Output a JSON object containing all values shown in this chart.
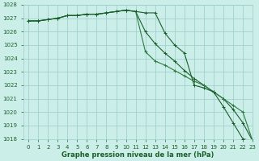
{
  "x": [
    0,
    1,
    2,
    3,
    4,
    5,
    6,
    7,
    8,
    9,
    10,
    11,
    12,
    13,
    14,
    15,
    16,
    17,
    18,
    19,
    20,
    21,
    22,
    23
  ],
  "line1": [
    1026.8,
    1026.8,
    1026.9,
    1027.0,
    1027.2,
    1027.2,
    1027.3,
    1027.3,
    1027.4,
    1027.5,
    1027.6,
    1027.5,
    1026.0,
    1025.1,
    1024.4,
    1023.8,
    1023.1,
    1022.5,
    1022.0,
    1021.5,
    1021.0,
    1020.2,
    1019.2,
    1017.85
  ],
  "line2": [
    1026.8,
    1026.8,
    1026.9,
    1027.0,
    1027.2,
    1027.2,
    1027.3,
    1027.3,
    1027.4,
    1027.5,
    1027.6,
    1027.5,
    1024.5,
    1023.8,
    1023.5,
    1023.1,
    1022.7,
    1022.3,
    1022.0,
    1021.5,
    1021.0,
    1020.5,
    1020.0,
    1017.85
  ],
  "line3": [
    1026.8,
    1026.8,
    1026.9,
    1027.0,
    1027.2,
    1027.2,
    1027.3,
    1027.3,
    1027.4,
    1027.5,
    1027.6,
    1027.5,
    1027.4,
    1027.4,
    1025.9,
    1025.0,
    1024.4,
    1022.0,
    1021.8,
    1021.5,
    1020.4,
    1019.2,
    1018.0,
    1017.85
  ],
  "bg_color": "#cceee8",
  "grid_color": "#99cccc",
  "line_color_dark": "#1a5e2a",
  "line_color_mid": "#2d7a40",
  "xlabel": "Graphe pression niveau de la mer (hPa)",
  "ylim": [
    1018,
    1028
  ],
  "xlim": [
    -0.5,
    23
  ],
  "yticks": [
    1018,
    1019,
    1020,
    1021,
    1022,
    1023,
    1024,
    1025,
    1026,
    1027,
    1028
  ],
  "xticks": [
    0,
    1,
    2,
    3,
    4,
    5,
    6,
    7,
    8,
    9,
    10,
    11,
    12,
    13,
    14,
    15,
    16,
    17,
    18,
    19,
    20,
    21,
    22,
    23
  ],
  "tick_color": "#1a5e2a",
  "label_fontsize": 6.0,
  "tick_fontsize": 5.0
}
